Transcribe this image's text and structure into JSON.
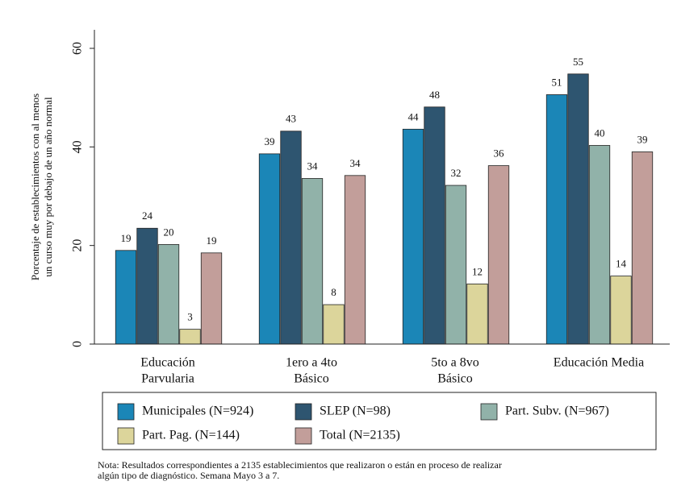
{
  "chart_data": {
    "type": "bar",
    "y_label": [
      "Porcentaje de establecimientos con al menos",
      "un curso muy por debajo de un año normal"
    ],
    "categories": [
      [
        "Educación",
        "Parvularia"
      ],
      [
        "1ero a 4to",
        "Básico"
      ],
      [
        "5to a 8vo",
        "Básico"
      ],
      [
        "Educación Media"
      ]
    ],
    "series": [
      {
        "name": "Municipales (N=924)",
        "color": "#1b86b7",
        "values": [
          19.0,
          38.6,
          43.6,
          50.6
        ],
        "value_labels": [
          "19",
          "39",
          "44",
          "51"
        ]
      },
      {
        "name": "SLEP (N=98)",
        "color": "#2e5570",
        "values": [
          23.5,
          43.2,
          48.1,
          54.8
        ],
        "value_labels": [
          "24",
          "43",
          "48",
          "55"
        ]
      },
      {
        "name": "Part. Subv. (N=967)",
        "color": "#91b2a9",
        "values": [
          20.2,
          33.6,
          32.2,
          40.3
        ],
        "value_labels": [
          "20",
          "34",
          "32",
          "40"
        ]
      },
      {
        "name": "Part. Pag. (N=144)",
        "color": "#dcd59b",
        "values": [
          3.0,
          8.0,
          12.2,
          13.8
        ],
        "value_labels": [
          "3",
          "8",
          "12",
          "14"
        ]
      },
      {
        "name": "Total (N=2135)",
        "color": "#c29e9a",
        "values": [
          18.5,
          34.2,
          36.2,
          39.0
        ],
        "value_labels": [
          "19",
          "34",
          "36",
          "39"
        ]
      }
    ],
    "ylim": [
      0,
      60
    ],
    "yticks": [
      0,
      20,
      40,
      60
    ],
    "grid": false,
    "legend": "bottom",
    "note": [
      "Nota: Resultados correspondientes a 2135 establecimientos que realizaron o están en proceso de realizar",
      "algún tipo de diagnóstico. Semana Mayo 3 a 7."
    ]
  }
}
